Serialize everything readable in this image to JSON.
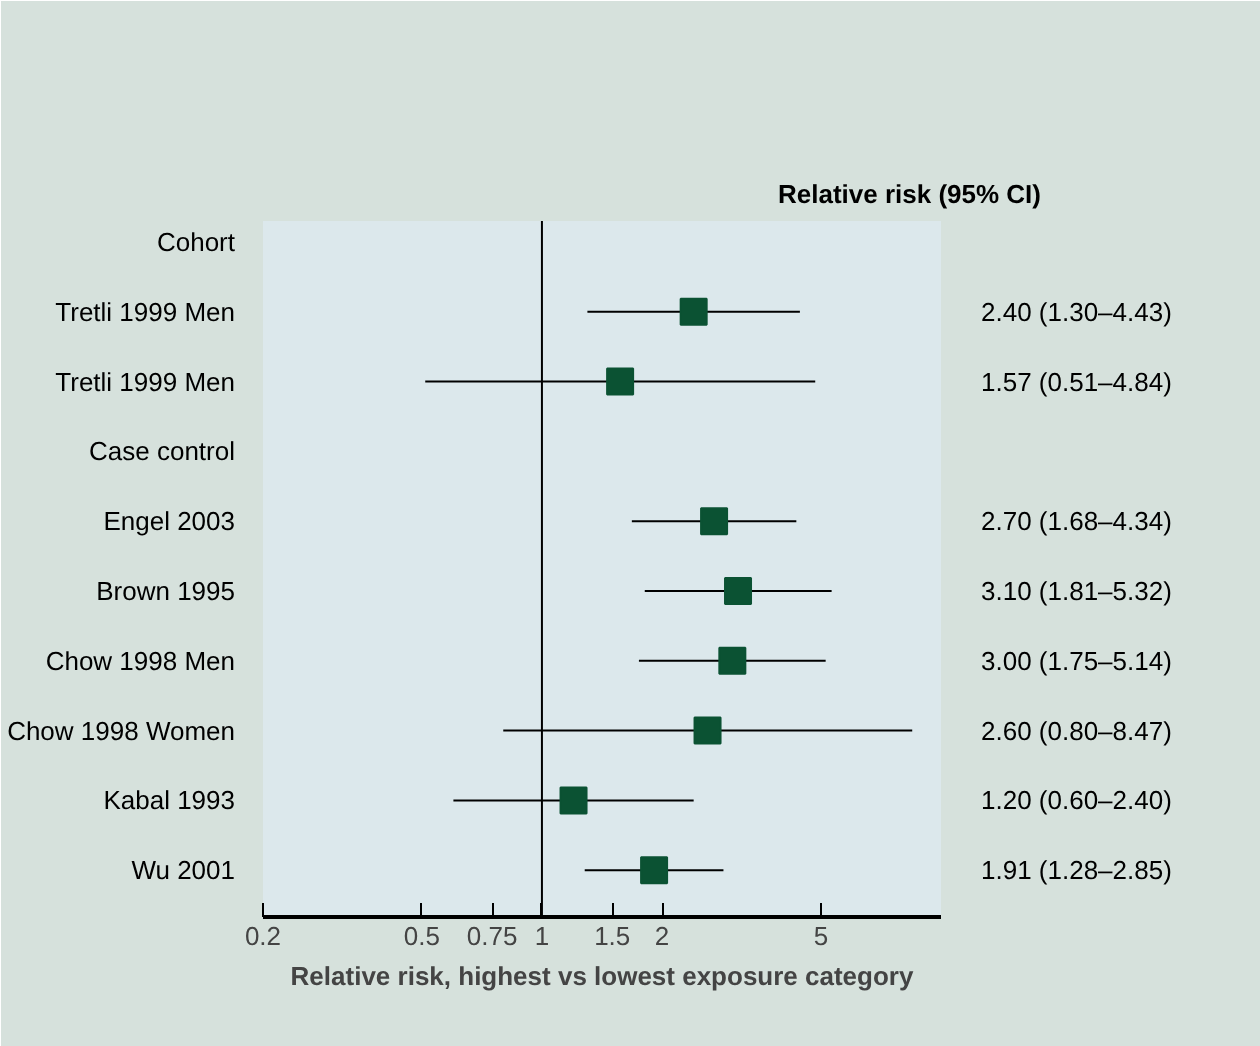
{
  "chart_data": {
    "type": "scatter",
    "orientation": "horizontal",
    "log": "x",
    "xlabel": "Relative risk, highest vs lowest exposure category",
    "annotations": [
      "Relative risk (95% CI)"
    ],
    "categories": [
      "Cohort",
      "Tretli 1999 Men",
      "Tretli 1999 Men",
      "Case control",
      "Engel 2003",
      "Brown 1995",
      "Chow 1998 Men",
      "Chow 1998 Women",
      "Kabal 1993",
      "Wu 2001"
    ],
    "values": [
      null,
      2.4,
      1.57,
      null,
      2.7,
      3.1,
      3.0,
      2.6,
      1.2,
      1.91
    ],
    "errors": [
      null,
      [
        1.3,
        4.43
      ],
      [
        0.51,
        4.84
      ],
      null,
      [
        1.68,
        4.34
      ],
      [
        1.81,
        5.32
      ],
      [
        1.75,
        5.14
      ],
      [
        0.8,
        8.47
      ],
      [
        0.6,
        2.4
      ],
      [
        1.28,
        2.85
      ]
    ],
    "value_labels": [
      null,
      "2.40 (1.30–4.43)",
      "1.57 (0.51–4.84)",
      null,
      "2.70 (1.68–4.34)",
      "3.10 (1.81–5.32)",
      "3.00 (1.75–5.14)",
      "2.60 (0.80–8.47)",
      "1.20 (0.60–2.40)",
      "1.91 (1.28–2.85)"
    ],
    "color": "#0b5233",
    "marker": "square",
    "xlim": [
      0.2,
      10
    ],
    "xticks": [
      0.2,
      0.5,
      0.75,
      1,
      1.5,
      2,
      5
    ],
    "ref_lines": [
      {
        "axis": "x",
        "value": 1,
        "color": "#000000"
      }
    ],
    "grid": false
  }
}
